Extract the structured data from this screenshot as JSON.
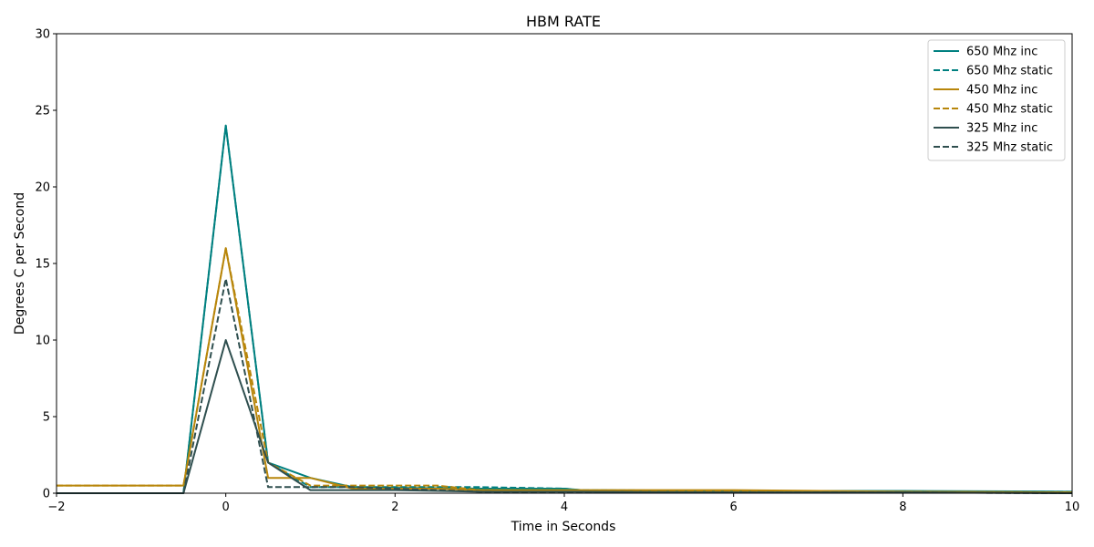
{
  "chart_data": {
    "type": "line",
    "title": "HBM RATE",
    "xlabel": "Time in Seconds",
    "ylabel": "Degrees C per Second",
    "xlim": [
      -2,
      10
    ],
    "ylim": [
      0,
      30
    ],
    "x_ticks": [
      -2,
      0,
      2,
      4,
      6,
      8,
      10
    ],
    "y_ticks": [
      0,
      5,
      10,
      15,
      20,
      25,
      30
    ],
    "grid": false,
    "legend_position": "top-right",
    "series": [
      {
        "name": "650 Mhz inc",
        "color": "#008080",
        "style": "solid",
        "x": [
          -2,
          -0.5,
          0,
          0.5,
          1,
          1.5,
          2,
          3,
          4,
          4.2,
          6,
          8,
          10
        ],
        "y": [
          0.0,
          0.0,
          24.0,
          2.0,
          1.0,
          0.4,
          0.35,
          0.3,
          0.3,
          0.2,
          0.15,
          0.15,
          0.1
        ]
      },
      {
        "name": "650 Mhz static",
        "color": "#008080",
        "style": "dashed",
        "x": [
          -2,
          -0.5,
          0,
          0.5,
          1,
          1.5,
          2,
          3,
          4,
          4.2,
          6,
          8,
          10
        ],
        "y": [
          0.0,
          0.0,
          24.0,
          2.0,
          0.4,
          0.4,
          0.4,
          0.4,
          0.3,
          0.2,
          0.15,
          0.1,
          0.1
        ]
      },
      {
        "name": "450 Mhz inc",
        "color": "#b8860b",
        "style": "solid",
        "x": [
          -2,
          -0.5,
          0,
          0.5,
          1,
          1.5,
          2,
          2.5,
          3,
          4,
          4.2,
          6,
          8,
          10
        ],
        "y": [
          0.5,
          0.5,
          16.0,
          1.0,
          1.0,
          0.3,
          0.3,
          0.3,
          0.2,
          0.2,
          0.2,
          0.2,
          0.1,
          0.05
        ]
      },
      {
        "name": "450 Mhz static",
        "color": "#b8860b",
        "style": "dashed",
        "x": [
          -2,
          -0.5,
          0,
          0.5,
          1,
          1.5,
          2,
          2.5,
          3,
          4,
          4.2,
          6,
          8,
          10
        ],
        "y": [
          0.5,
          0.5,
          16.0,
          2.0,
          0.5,
          0.5,
          0.5,
          0.5,
          0.2,
          0.15,
          0.15,
          0.1,
          0.1,
          0.05
        ]
      },
      {
        "name": "325 Mhz inc",
        "color": "#2f4f4f",
        "style": "solid",
        "x": [
          -2,
          -0.5,
          0,
          0.5,
          1,
          1.5,
          2,
          3,
          4,
          6,
          8,
          10
        ],
        "y": [
          0.0,
          0.0,
          10.0,
          2.0,
          0.2,
          0.2,
          0.2,
          0.1,
          0.1,
          0.05,
          0.05,
          0.0
        ]
      },
      {
        "name": "325 Mhz static",
        "color": "#2f4f4f",
        "style": "dashed",
        "x": [
          -2,
          -0.5,
          0,
          0.5,
          1,
          1.5,
          2,
          3,
          4,
          6,
          8,
          10
        ],
        "y": [
          0.0,
          0.0,
          14.0,
          0.4,
          0.4,
          0.4,
          0.3,
          0.1,
          0.05,
          0.05,
          0.05,
          0.0
        ]
      }
    ]
  }
}
